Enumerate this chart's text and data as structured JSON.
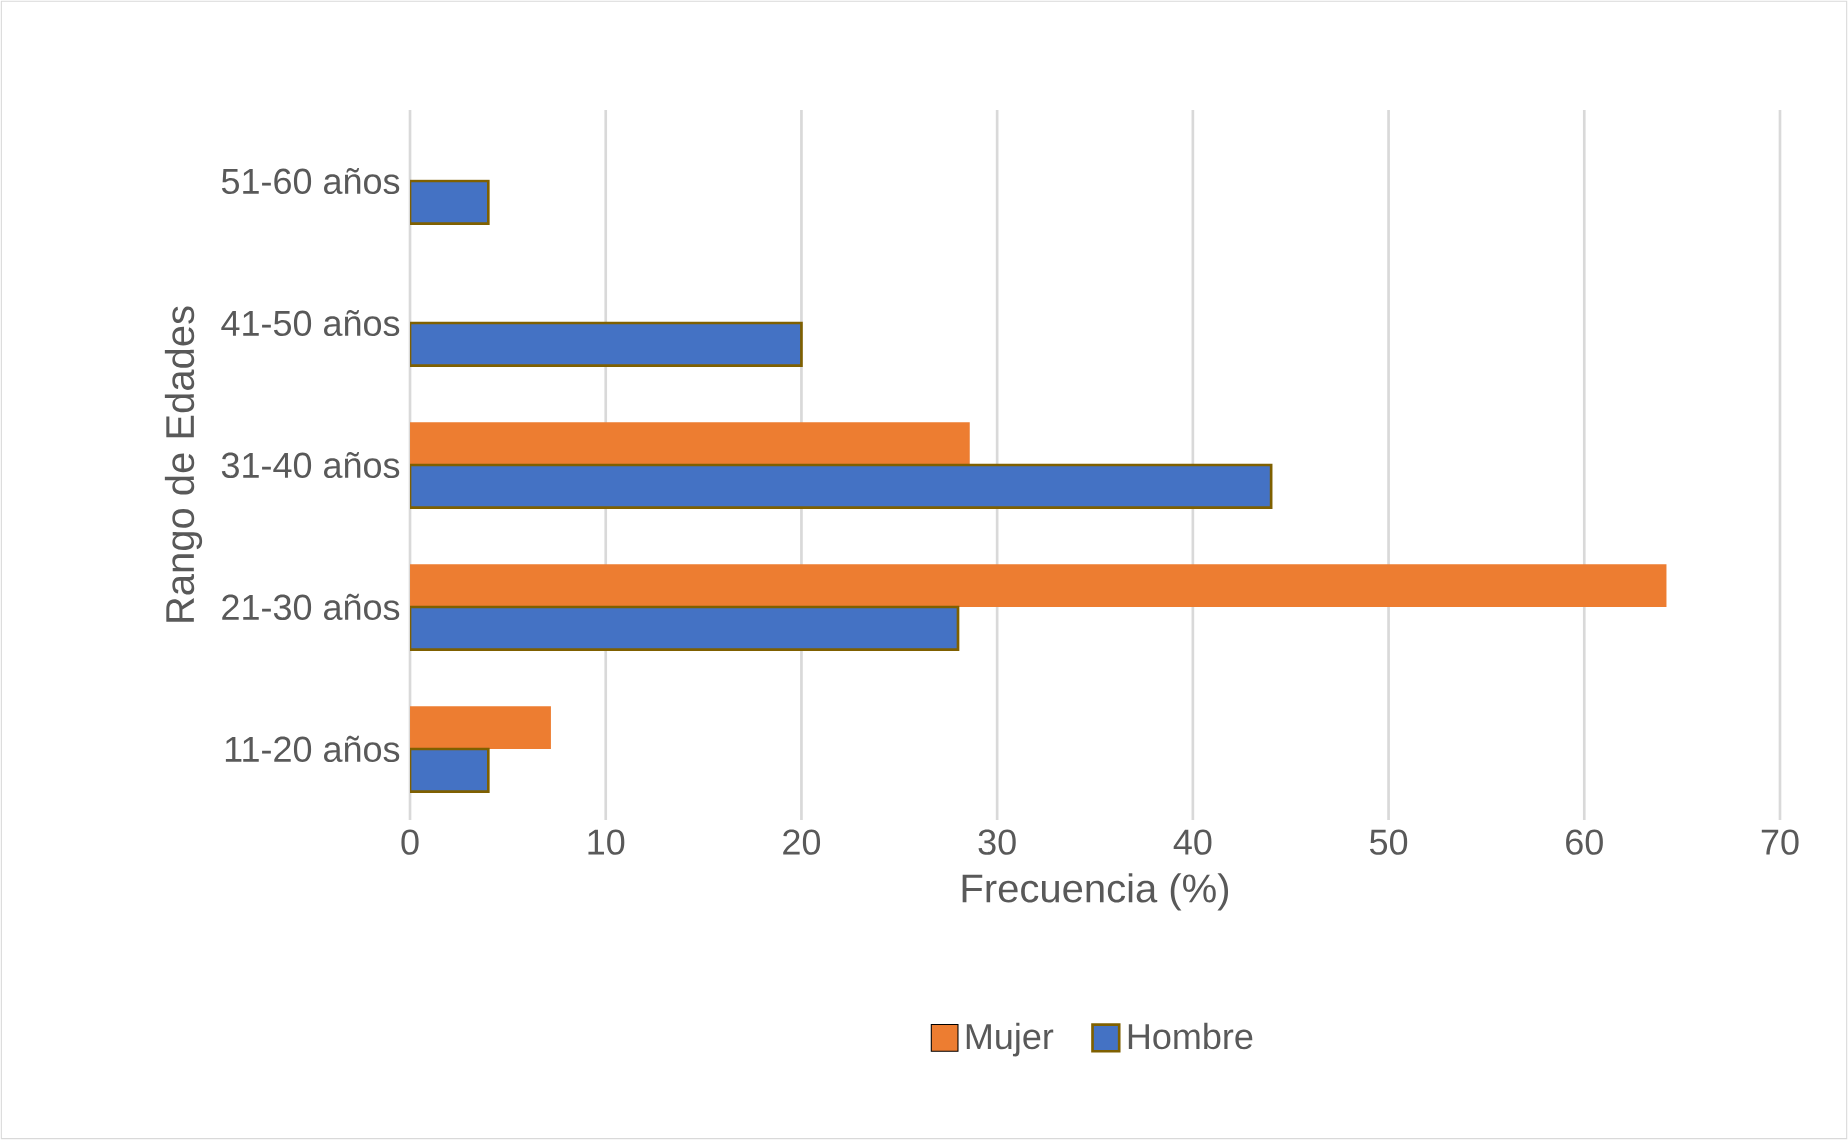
{
  "chart_data": {
    "type": "bar",
    "orientation": "horizontal",
    "xlabel": "Frecuencia (%)",
    "ylabel": "Rango de Edades",
    "categories": [
      "51-60 años",
      "41-50 años",
      "31-40 años",
      "21-30 años",
      "11-20 años"
    ],
    "series": [
      {
        "name": "Mujer",
        "color": "#ed7d31",
        "values": [
          null,
          null,
          28.6,
          64.2,
          7.2
        ]
      },
      {
        "name": "Hombre",
        "color": "#4472c4",
        "values": [
          4,
          20,
          44,
          28,
          4
        ]
      }
    ],
    "xlim": [
      0,
      70
    ],
    "xticks": [
      0,
      10,
      20,
      30,
      40,
      50,
      60,
      70
    ],
    "grid": "x",
    "legend": "bottom"
  }
}
